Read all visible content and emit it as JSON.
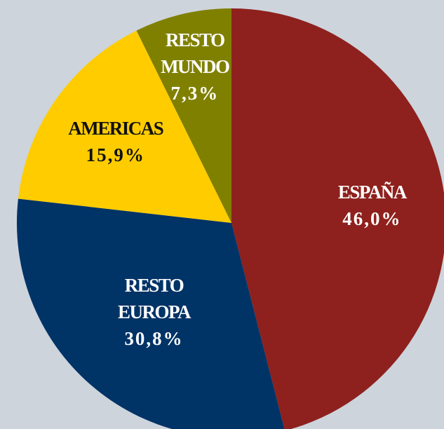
{
  "chart_data": {
    "type": "pie",
    "categories": [
      "ESPAÑA",
      "RESTO EUROPA",
      "AMERICAS",
      "RESTO MUNDO"
    ],
    "values": [
      46.0,
      30.8,
      15.9,
      7.3
    ],
    "value_labels": [
      "46,0%",
      "30,8%",
      "15,9%",
      "7,3%"
    ],
    "colors": [
      "#8e211d",
      "#003366",
      "#ffcc00",
      "#808000"
    ],
    "label_colors": [
      "#ffffff",
      "#ffffff",
      "#111111",
      "#ffffff"
    ]
  }
}
